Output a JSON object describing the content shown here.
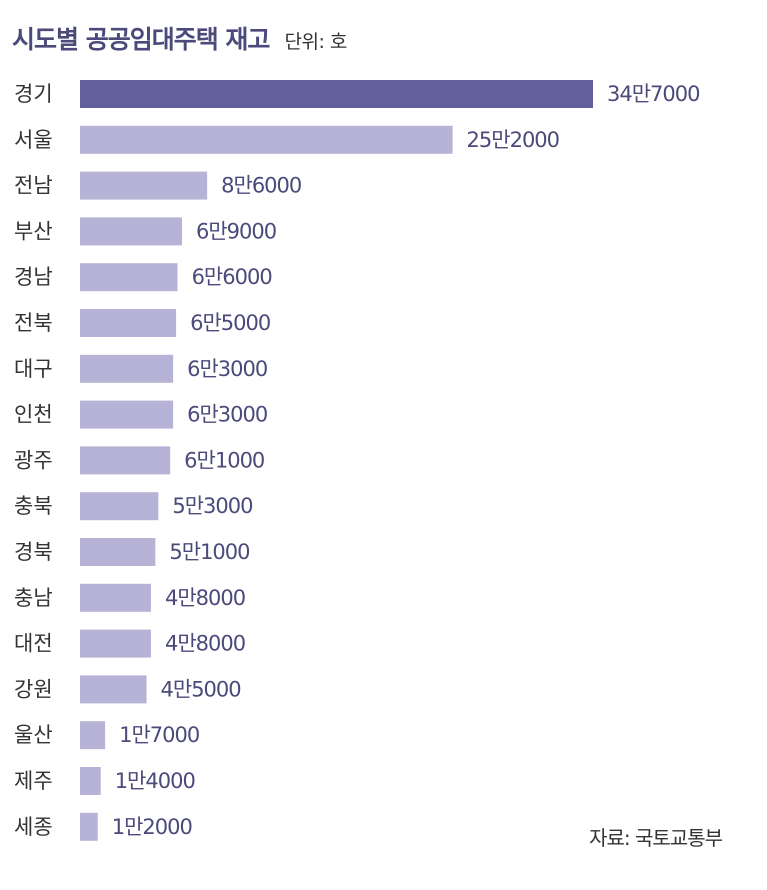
{
  "title": "시도별 공공임대주택 재고",
  "unit_label": "단위: 호",
  "source": "자료: 국토교통부",
  "colors": {
    "highlight": "#635e9c",
    "bar": "#b6b3d6",
    "text": "#333333",
    "value_text": "#4b4a7a"
  },
  "chart_data": {
    "type": "bar",
    "orientation": "horizontal",
    "categories": [
      "경기",
      "서울",
      "전남",
      "부산",
      "경남",
      "전북",
      "대구",
      "인천",
      "광주",
      "충북",
      "경북",
      "충남",
      "대전",
      "강원",
      "울산",
      "제주",
      "세종"
    ],
    "values": [
      347000,
      252000,
      86000,
      69000,
      66000,
      65000,
      63000,
      63000,
      61000,
      53000,
      51000,
      48000,
      48000,
      45000,
      17000,
      14000,
      12000
    ],
    "value_labels": [
      "34만7000",
      "25만2000",
      "8만6000",
      "6만9000",
      "6만6000",
      "6만5000",
      "6만3000",
      "6만3000",
      "6만1000",
      "5만3000",
      "5만1000",
      "4만8000",
      "4만8000",
      "4만5000",
      "1만7000",
      "1만4000",
      "1만2000"
    ],
    "highlight_index": 0,
    "grid": false,
    "legend": "none"
  }
}
